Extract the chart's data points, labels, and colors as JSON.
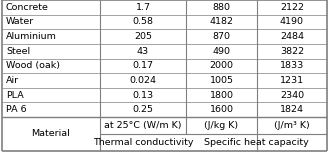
{
  "materials": [
    "PA 6",
    "PLA",
    "Air",
    "Wood (oak)",
    "Steel",
    "Aluminium",
    "Water",
    "Concrete"
  ],
  "thermal_conductivity": [
    "0.25",
    "0.13",
    "0.024",
    "0.17",
    "43",
    "205",
    "0.58",
    "1.7"
  ],
  "specific_heat_jkg": [
    "1600",
    "1800",
    "1005",
    "2000",
    "490",
    "870",
    "4182",
    "880"
  ],
  "specific_heat_jm3": [
    "1824",
    "2340",
    "1231",
    "1833",
    "3822",
    "2484",
    "4190",
    "2122"
  ],
  "header1_thermal": "Thermal conductivity",
  "header1_specific": "Specific heat capacity",
  "header2_thermal": "at 25°C (W/m K)",
  "header2_jkg": "(J/kg K)",
  "header2_jm3": "(J/m³ K)",
  "header_material": "Material",
  "background_color": "#ffffff",
  "line_color": "#7f7f7f",
  "text_color": "#000000",
  "font_size": 6.8
}
